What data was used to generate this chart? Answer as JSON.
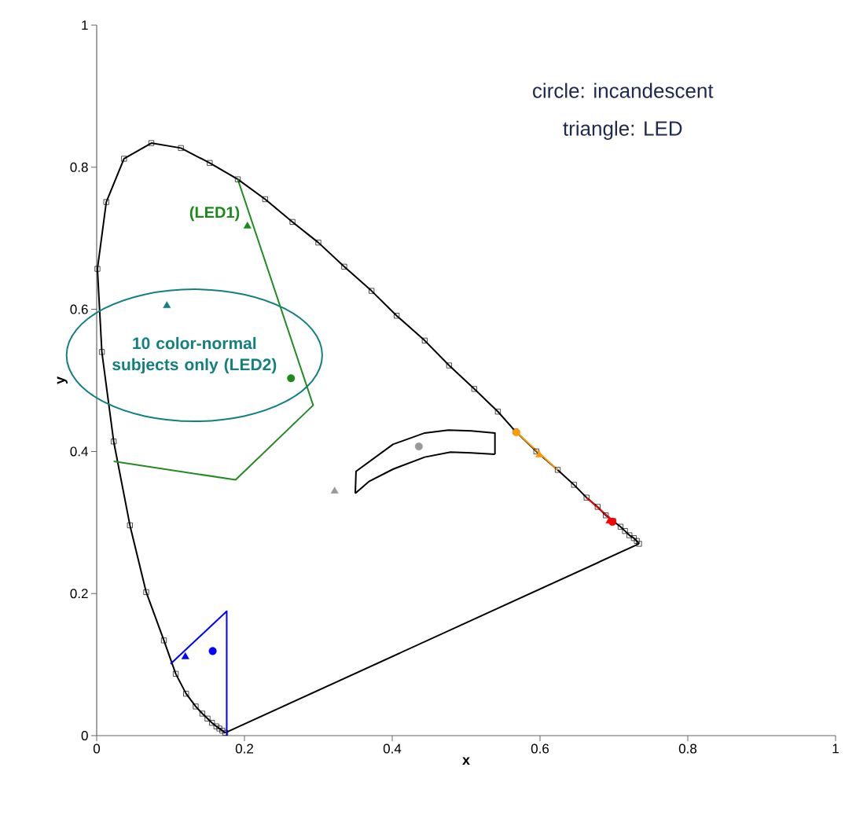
{
  "chart_data": {
    "type": "line",
    "xlabel": "x",
    "ylabel": "y",
    "xlim": [
      0,
      1
    ],
    "ylim": [
      0,
      1
    ],
    "xticks": [
      0,
      0.2,
      0.4,
      0.6,
      0.8,
      1
    ],
    "yticks": [
      0,
      0.2,
      0.4,
      0.6,
      0.8,
      1
    ],
    "grid": false,
    "annotations": [
      "circle: incandescent",
      "triangle: LED",
      {
        "text": "(LED1)",
        "x": 0.204,
        "y": 0.717
      },
      {
        "text": "10 color-normal subjects only (LED2)",
        "x": 0.095,
        "y": 0.605
      }
    ],
    "series": [
      {
        "type": "line",
        "color": "#000000",
        "marker": "square",
        "x": [
          0.174,
          0.17,
          0.166,
          0.162,
          0.156,
          0.15,
          0.143,
          0.134,
          0.121,
          0.107,
          0.091,
          0.067,
          0.045,
          0.023,
          0.007,
          0.001,
          0.013,
          0.037,
          0.074,
          0.114,
          0.153,
          0.191,
          0.228,
          0.265,
          0.3,
          0.335,
          0.372,
          0.406,
          0.444,
          0.477,
          0.511,
          0.543,
          0.567,
          0.595,
          0.624,
          0.646,
          0.663,
          0.678,
          0.689,
          0.699,
          0.709,
          0.715,
          0.721,
          0.727,
          0.731,
          0.734
        ],
        "values": [
          0.004,
          0.007,
          0.01,
          0.013,
          0.018,
          0.024,
          0.031,
          0.041,
          0.059,
          0.087,
          0.134,
          0.202,
          0.296,
          0.414,
          0.54,
          0.657,
          0.751,
          0.812,
          0.834,
          0.827,
          0.806,
          0.783,
          0.755,
          0.723,
          0.694,
          0.66,
          0.626,
          0.591,
          0.556,
          0.521,
          0.488,
          0.456,
          0.428,
          0.4,
          0.374,
          0.353,
          0.335,
          0.322,
          0.31,
          0.302,
          0.294,
          0.288,
          0.282,
          0.278,
          0.274,
          0.27
        ]
      },
      {
        "type": "line",
        "color": "#000000",
        "marker": "none",
        "x": [
          0.734,
          0.174
        ],
        "values": [
          0.27,
          0.004
        ]
      },
      {
        "type": "line",
        "color": "#228b22",
        "marker": "none",
        "x": [
          0.191,
          0.293,
          0.188,
          0.023
        ],
        "values": [
          0.783,
          0.465,
          0.36,
          0.386
        ]
      },
      {
        "type": "line",
        "color": "#0000ff",
        "marker": "none",
        "x": [
          0.1,
          0.176,
          0.176
        ],
        "values": [
          0.101,
          0.175,
          0.0
        ]
      },
      {
        "type": "line",
        "color": "#ff9900",
        "marker": "none",
        "x": [
          0.567,
          0.624
        ],
        "values": [
          0.428,
          0.374
        ]
      },
      {
        "type": "line",
        "color": "#ff0000",
        "marker": "none",
        "x": [
          0.663,
          0.699
        ],
        "values": [
          0.335,
          0.302
        ]
      },
      {
        "color": "#000000",
        "marker": "none",
        "x": [
          0.35,
          0.351,
          0.401,
          0.444,
          0.476,
          0.507,
          0.539,
          0.539
        ],
        "values": [
          0.341,
          0.372,
          0.41,
          0.426,
          0.43,
          0.429,
          0.426,
          0.396
        ]
      },
      {
        "color": "#000000",
        "marker": "none",
        "x": [
          0.35,
          0.369,
          0.401,
          0.444,
          0.479,
          0.507,
          0.539
        ],
        "values": [
          0.341,
          0.358,
          0.375,
          0.392,
          0.399,
          0.398,
          0.396
        ]
      },
      {
        "type": "scatter",
        "marker": "triangle",
        "x": [
          0.204,
          0.095,
          0.322,
          0.599,
          0.694,
          0.12
        ],
        "values": [
          0.717,
          0.605,
          0.344,
          0.395,
          0.302,
          0.111
        ],
        "colors": [
          "#1a8a1a",
          "#138080",
          "#999999",
          "#ff9900",
          "#ff0000",
          "#0000ff"
        ]
      },
      {
        "type": "scatter",
        "marker": "circle",
        "x": [
          0.263,
          0.436,
          0.568,
          0.698,
          0.157
        ],
        "values": [
          0.503,
          0.407,
          0.427,
          0.301,
          0.119
        ],
        "colors": [
          "#1a8a1a",
          "#999999",
          "#ff9900",
          "#ff0000",
          "#0000ff"
        ]
      }
    ]
  }
}
